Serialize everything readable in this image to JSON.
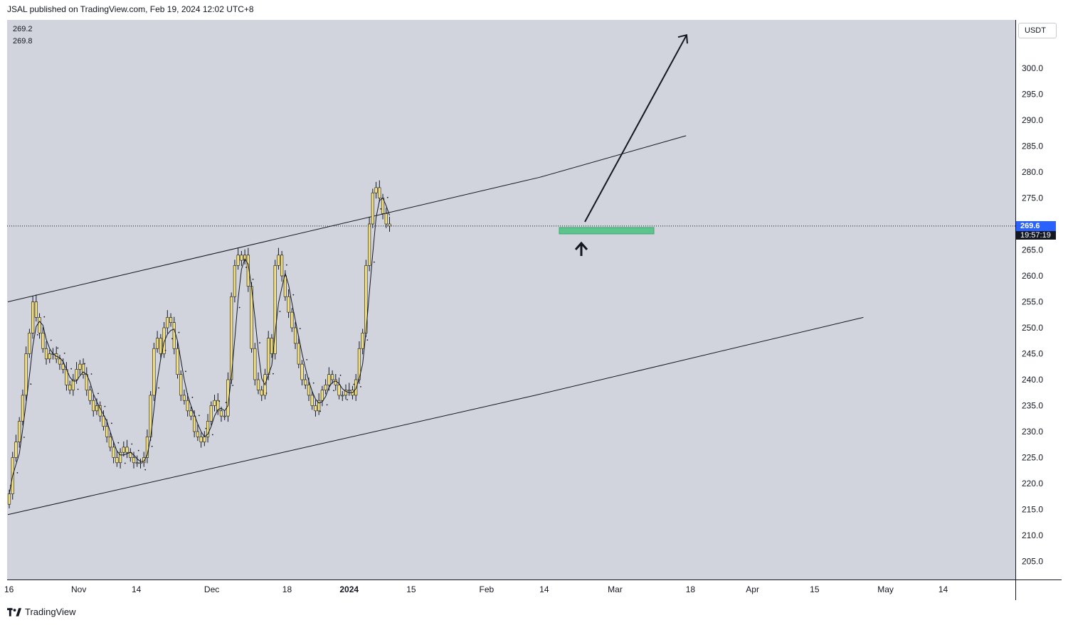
{
  "header": {
    "publish_line": "JSAL published on TradingView.com, Feb 19, 2024 12:02 UTC+8"
  },
  "legend": {
    "line1": "269.2",
    "line2": "269.8"
  },
  "price_axis": {
    "currency": "USDT",
    "ticks": [
      "300.0",
      "295.0",
      "290.0",
      "285.0",
      "280.0",
      "275.0",
      "265.0",
      "260.0",
      "255.0",
      "250.0",
      "245.0",
      "240.0",
      "235.0",
      "230.0",
      "225.0",
      "220.0",
      "215.0",
      "210.0",
      "205.0"
    ],
    "last_price": "269.6",
    "countdown": "19:57:19"
  },
  "time_axis": {
    "ticks": [
      {
        "label": "16",
        "bold": false
      },
      {
        "label": "Nov",
        "bold": false
      },
      {
        "label": "14",
        "bold": false
      },
      {
        "label": "Dec",
        "bold": false
      },
      {
        "label": "18",
        "bold": false
      },
      {
        "label": "2024",
        "bold": true
      },
      {
        "label": "15",
        "bold": false
      },
      {
        "label": "Feb",
        "bold": false
      },
      {
        "label": "14",
        "bold": false
      },
      {
        "label": "Mar",
        "bold": false
      },
      {
        "label": "18",
        "bold": false
      },
      {
        "label": "Apr",
        "bold": false
      },
      {
        "label": "15",
        "bold": false
      },
      {
        "label": "May",
        "bold": false
      },
      {
        "label": "14",
        "bold": false
      }
    ]
  },
  "footer": {
    "brand": "TradingView"
  },
  "colors": {
    "pane_bg": "#d1d4dc",
    "candle_fill": "#f7e27a",
    "candle_border": "#131722",
    "zone_fill": "#5cc48d",
    "last_price_bg": "#2962ff"
  },
  "chart_data": {
    "type": "candlestick",
    "ylim": [
      200,
      308
    ],
    "price_ticks": [
      205,
      210,
      215,
      220,
      225,
      230,
      235,
      240,
      245,
      250,
      255,
      260,
      265,
      270,
      275,
      280,
      285,
      290,
      295,
      300
    ],
    "close_series": [
      218,
      225,
      228,
      232,
      237,
      245,
      249,
      255,
      252,
      249,
      246,
      244,
      245,
      245,
      244,
      243,
      242,
      239,
      238,
      240,
      242,
      243,
      241,
      238,
      236,
      234,
      235,
      233,
      231,
      229,
      227,
      225,
      224,
      226,
      227,
      226,
      225,
      224,
      224,
      224,
      225,
      229,
      237,
      246,
      248,
      245,
      250,
      252,
      251,
      246,
      241,
      237,
      236,
      234,
      233,
      230,
      229,
      228,
      229,
      232,
      235,
      236,
      234,
      233,
      233,
      240,
      256,
      262,
      264,
      263,
      264,
      258,
      246,
      240,
      238,
      237,
      241,
      248,
      245,
      262,
      264,
      260,
      256,
      253,
      250,
      247,
      243,
      240,
      239,
      237,
      235,
      234,
      236,
      238,
      239,
      241,
      240,
      239,
      237,
      237,
      238,
      238,
      237,
      240,
      246,
      249,
      262,
      270,
      276,
      277,
      275,
      272,
      270,
      269.6
    ],
    "channel": {
      "upper": [
        {
          "date": "2023-10-16",
          "price": 255
        },
        {
          "date": "2024-02-13",
          "price": 279
        },
        {
          "date": "2024-03-17",
          "price": 287
        }
      ],
      "lower": [
        {
          "date": "2023-10-16",
          "price": 214
        },
        {
          "date": "2024-02-12",
          "price": 237
        },
        {
          "date": "2024-04-26",
          "price": 252
        }
      ]
    },
    "annotations": {
      "projection_arrow": {
        "from": 270,
        "to": 306
      },
      "support_zone": {
        "low": 268.3,
        "high": 269.6
      },
      "up_arrow": true
    },
    "last_price": 269.6
  }
}
